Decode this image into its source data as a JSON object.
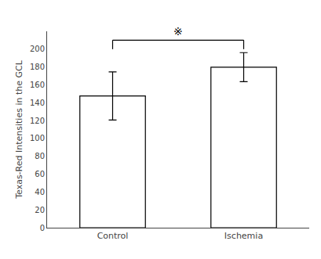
{
  "chart_data": {
    "type": "bar",
    "categories": [
      "Control",
      "Ischemia"
    ],
    "values": [
      147.6,
      179.8
    ],
    "errors": [
      26.9,
      16.3
    ],
    "colors": [
      "#ffffff",
      "#ffffff"
    ],
    "ylabel": "Texas-Red Intensities in the GCL",
    "ylim": [
      0,
      220
    ],
    "yticks": [
      0,
      20,
      40,
      60,
      80,
      100,
      120,
      140,
      160,
      180,
      200
    ],
    "annotations": [
      {
        "text": "※"
      }
    ],
    "grid": false
  }
}
